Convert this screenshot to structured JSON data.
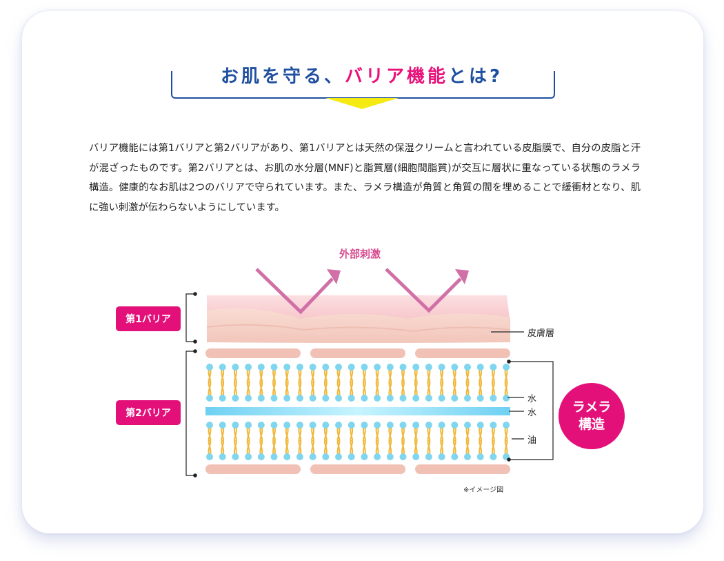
{
  "heading": {
    "title_part1": "お肌を守る、",
    "title_part2": "バリア機能",
    "title_part3": "とは?"
  },
  "body": {
    "paragraph": "バリア機能には第1バリアと第2バリアがあり、第1バリアとは天然の保湿クリームと言われている皮脂膜で、自分の皮脂と汗が混ざったものです。第2バリアとは、お肌の水分層(MNF)と脂質層(細胞間脂質)が交互に層状に重なっている状態のラメラ構造。健康的なお肌は2つのバリアで守られています。また、ラメラ構造が角質と角質の間を埋めることで緩衝材となり、肌に強い刺激が伝わらないようにしています。"
  },
  "diagram": {
    "stimulus_label": "外部刺激",
    "barrier1_label": "第1バリア",
    "barrier2_label": "第2バリア",
    "skin_layer_label": "皮膚層",
    "water_label_1": "水",
    "water_label_2": "水",
    "oil_label": "油",
    "lamella_line1": "ラメラ",
    "lamella_line2": "構造",
    "note": "※イメージ図"
  },
  "colors": {
    "heading_blue": "#1f4fa0",
    "accent_pink": "#e4107a",
    "arrow_yellow": "#f5ea12",
    "stimulus_arrow": "#d070a6",
    "skin_pink": "#f6c9c9",
    "corneocyte": "#f2c1b6",
    "lipid_head": "#7fd6ee",
    "lipid_tail": "#f0b83a",
    "water_layer": "#7fd6f5"
  }
}
